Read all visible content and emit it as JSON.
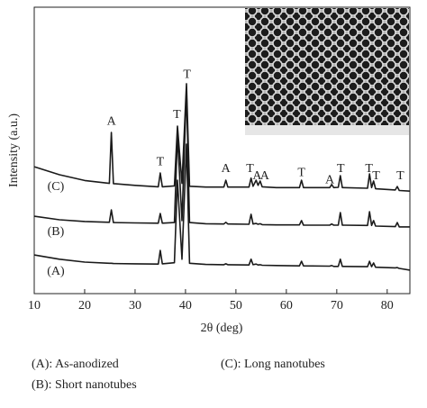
{
  "chart_data": {
    "type": "line",
    "x_label": "2θ (deg)",
    "y_label": "Intensity (a.u.)",
    "xlim": [
      10,
      84.5
    ],
    "ylim": [
      0,
      100
    ],
    "xticks": [
      10,
      20,
      30,
      40,
      50,
      60,
      70,
      80
    ],
    "x": [
      10,
      15,
      20,
      24.9,
      25.3,
      25.7,
      30,
      34.6,
      35,
      35.4,
      37.8,
      38.4,
      39.3,
      40.2,
      40.8,
      44,
      47.6,
      48,
      48.4,
      52.6,
      53,
      53.4,
      54,
      54.4,
      54.8,
      55.2,
      58,
      62.6,
      63,
      63.4,
      68.6,
      69,
      69.4,
      70.3,
      70.7,
      71.1,
      76.1,
      76.5,
      76.9,
      77.3,
      77.7,
      81.6,
      82,
      82.4,
      84.5
    ],
    "series": [
      {
        "name": "(C)",
        "color": "#1a1a1a",
        "values": [
          44.3,
          41.5,
          39.5,
          38.5,
          56.3,
          38.4,
          37.8,
          37.3,
          42.1,
          37.3,
          37.6,
          58.5,
          38.5,
          73.3,
          37.5,
          37.2,
          37.2,
          39.6,
          37.2,
          37.2,
          40.3,
          37.5,
          39.6,
          37.8,
          39.3,
          37.3,
          37,
          37,
          39.6,
          37,
          37,
          38.1,
          37,
          37.1,
          41.2,
          37,
          36.8,
          41.8,
          37,
          39.3,
          36.6,
          36.2,
          37.4,
          36,
          35.8
        ]
      },
      {
        "name": "(B)",
        "color": "#1a1a1a",
        "values": [
          27,
          25.8,
          25.2,
          24.9,
          29.2,
          24.8,
          24.7,
          24.6,
          28,
          24.6,
          24.8,
          55.3,
          25.5,
          71,
          24.8,
          24.4,
          24.3,
          24.9,
          24.3,
          24.2,
          27.7,
          24.3,
          24.5,
          24.2,
          24.4,
          24.1,
          24,
          24,
          25.5,
          23.9,
          23.9,
          24.3,
          23.9,
          23.9,
          28.3,
          23.9,
          23.8,
          28.6,
          23.8,
          25.5,
          23.6,
          23.4,
          24.8,
          23.3,
          23.3
        ]
      },
      {
        "name": "(A)",
        "color": "#1a1a1a",
        "values": [
          13.5,
          12,
          11,
          10.6,
          10.6,
          10.5,
          10.4,
          10.3,
          15.1,
          10.4,
          10.8,
          39.6,
          12,
          52.2,
          10.6,
          10.2,
          10.1,
          10.4,
          10.1,
          10,
          12,
          10.1,
          10.3,
          10,
          10.1,
          9.9,
          9.8,
          9.7,
          11.3,
          9.7,
          9.6,
          9.8,
          9.5,
          9.5,
          12,
          9.5,
          9.4,
          11.3,
          9.4,
          10.7,
          9.2,
          9,
          9.1,
          8.8,
          8.2
        ]
      }
    ],
    "annotations": [
      {
        "text": "A",
        "x": 25.3,
        "y": 60
      },
      {
        "text": "T",
        "x": 35,
        "y": 45.9
      },
      {
        "text": "T",
        "x": 38.3,
        "y": 62.3
      },
      {
        "text": "T",
        "x": 40.3,
        "y": 76.4
      },
      {
        "text": "A",
        "x": 48,
        "y": 43.4
      },
      {
        "text": "T",
        "x": 52.8,
        "y": 43.4
      },
      {
        "text": "A",
        "x": 54.2,
        "y": 40.9
      },
      {
        "text": "A",
        "x": 55.7,
        "y": 40.9
      },
      {
        "text": "T",
        "x": 63,
        "y": 42.1
      },
      {
        "text": "A",
        "x": 68.6,
        "y": 39.6
      },
      {
        "text": "T",
        "x": 70.8,
        "y": 43.4
      },
      {
        "text": "T",
        "x": 76.4,
        "y": 43.4
      },
      {
        "text": "T",
        "x": 77.8,
        "y": 40.9
      },
      {
        "text": "T",
        "x": 82.6,
        "y": 40.9
      }
    ],
    "notes": [
      "(A): As-anodized",
      "(C): Long nanotubes",
      "(B): Short nanotubes"
    ]
  }
}
